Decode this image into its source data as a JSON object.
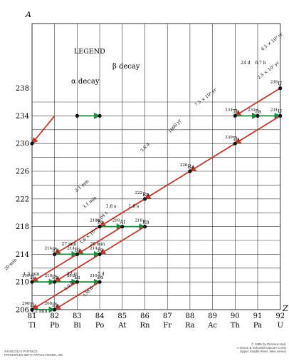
{
  "axes": {
    "y_title": "A",
    "x_title": "Z",
    "y_ticks": [
      "206",
      "210",
      "214",
      "218",
      "222",
      "226",
      "230",
      "234",
      "238"
    ],
    "x_ticks": [
      {
        "z": "81",
        "symbol": "Tl"
      },
      {
        "z": "82",
        "symbol": "Pb"
      },
      {
        "z": "83",
        "symbol": "Bi"
      },
      {
        "z": "84",
        "symbol": "Po"
      },
      {
        "z": "85",
        "symbol": "At"
      },
      {
        "z": "86",
        "symbol": "Rn"
      },
      {
        "z": "87",
        "symbol": "Fr"
      },
      {
        "z": "88",
        "symbol": "Ra"
      },
      {
        "z": "89",
        "symbol": "Ac"
      },
      {
        "z": "90",
        "symbol": "Th"
      },
      {
        "z": "91",
        "symbol": "Pa"
      },
      {
        "z": "92",
        "symbol": "U"
      }
    ]
  },
  "legend": {
    "title": "LEGEND",
    "alpha": "α decay",
    "beta": "β decay"
  },
  "nuclides": [
    {
      "mass": "238",
      "sym": "U"
    },
    {
      "mass": "234",
      "sym": "Th"
    },
    {
      "mass": "234",
      "sym": "Pa"
    },
    {
      "mass": "234",
      "sym": "U"
    },
    {
      "mass": "230",
      "sym": "Th"
    },
    {
      "mass": "226",
      "sym": "Ra"
    },
    {
      "mass": "222",
      "sym": "Rn"
    },
    {
      "mass": "218",
      "sym": "Po"
    },
    {
      "mass": "218",
      "sym": "At"
    },
    {
      "mass": "218",
      "sym": "Rn"
    },
    {
      "mass": "214",
      "sym": "Pb"
    },
    {
      "mass": "214",
      "sym": "Bi"
    },
    {
      "mass": "214",
      "sym": "Po"
    },
    {
      "mass": "210",
      "sym": "Tl"
    },
    {
      "mass": "210",
      "sym": "Pb"
    },
    {
      "mass": "210",
      "sym": "Bi"
    },
    {
      "mass": "210",
      "sym": "Po"
    },
    {
      "mass": "206",
      "sym": "Tl"
    },
    {
      "mass": "206",
      "sym": "Pb"
    }
  ],
  "half_lives": [
    "4.5 × 10⁹ yr",
    "24 d",
    "6.7 h",
    "2.5 × 10⁵ yr",
    "7.5 × 10⁴ yr",
    "1600 yr",
    "3.8 d",
    "3.1 min",
    "1.6 s",
    "3.1 min",
    "1.6 s",
    "27 min",
    "20 min",
    "0.04 s",
    "1.6 × 10⁻⁴ s",
    "20 min",
    "1.3 min",
    "22 yr",
    "5 d",
    "5.0 d",
    "138 d",
    "4.2 min"
  ],
  "footer": {
    "left_line1": "GIANCOLI'S PHYSICS:",
    "left_line2": "PRINCIPLES WITH APPLICATIONS, 4/E",
    "right_line1": "© 1995 by Prentice-Hall,",
    "right_line2": "A Simon & Schuster/Viacom Comp",
    "right_line3": "Upper Saddle River, New Jersey"
  },
  "colors": {
    "alpha": "#c0392b",
    "beta": "#1e8a3c",
    "grid": "#333333",
    "node": "#111111"
  }
}
